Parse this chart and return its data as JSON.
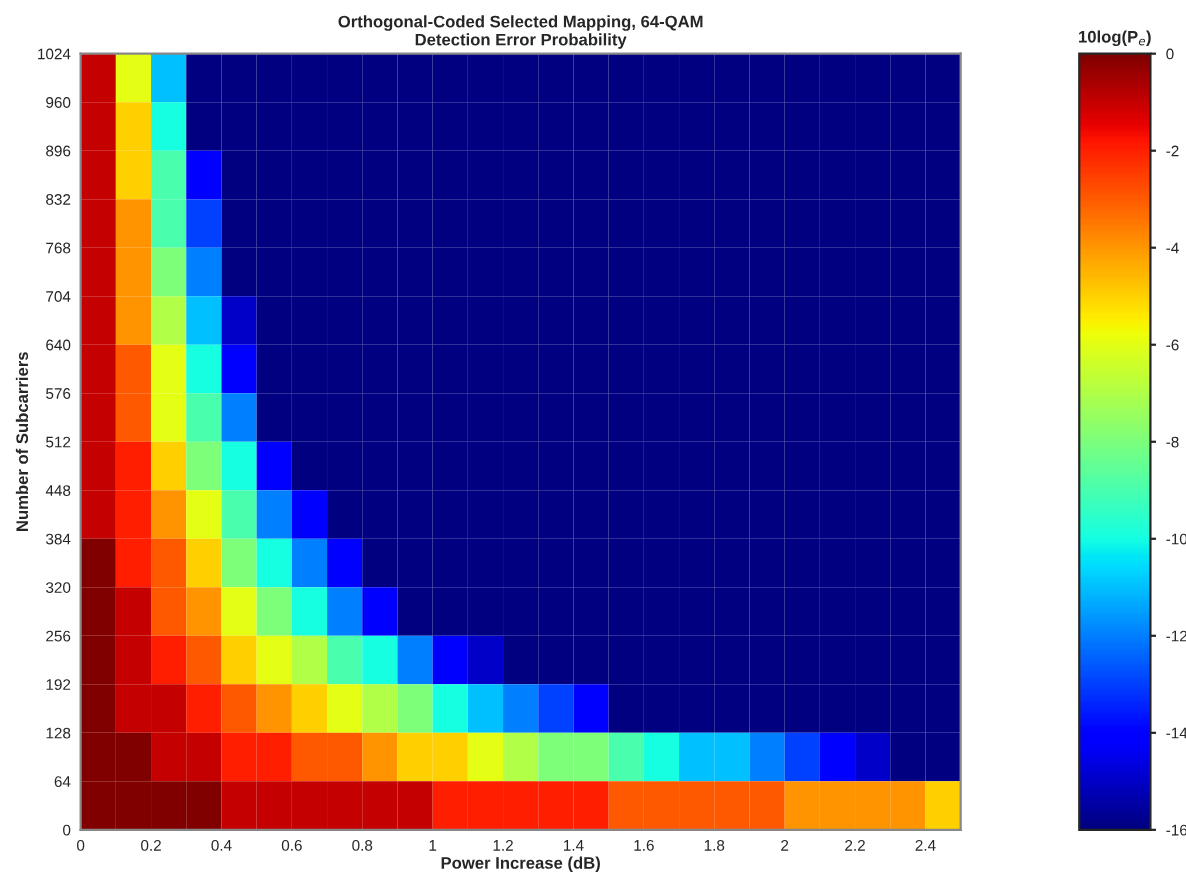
{
  "chart_data": {
    "type": "heatmap",
    "title": "Orthogonal-Coded Selected Mapping, 64-QAM",
    "subtitle": "Detection Error Probability",
    "xlabel": "Power Increase (dB)",
    "ylabel": "Number of Subcarriers",
    "clabel": "10log(P$_{e}$)",
    "x": [
      0.05,
      0.15,
      0.25,
      0.35,
      0.45,
      0.55,
      0.65,
      0.75,
      0.85,
      0.95,
      1.05,
      1.15,
      1.25,
      1.35,
      1.45,
      1.55,
      1.65,
      1.75,
      1.85,
      1.95,
      2.05,
      2.15,
      2.25,
      2.35,
      2.45
    ],
    "y": [
      992,
      928,
      864,
      800,
      736,
      672,
      608,
      544,
      480,
      416,
      352,
      288,
      224,
      160,
      96,
      32
    ],
    "xlim": [
      0,
      2.5
    ],
    "xticks": [
      0,
      0.2,
      0.4,
      0.6,
      0.8,
      1,
      1.2,
      1.4,
      1.6,
      1.8,
      2,
      2.2,
      2.4
    ],
    "ylim": [
      0,
      1024
    ],
    "yticks": [
      0,
      64,
      128,
      192,
      256,
      320,
      384,
      448,
      512,
      576,
      640,
      704,
      768,
      832,
      896,
      960,
      1024
    ],
    "clim": [
      -16,
      0
    ],
    "cticks": [
      0,
      -2,
      -4,
      -6,
      -8,
      -10,
      -12,
      -14,
      -16
    ],
    "cells": [
      [
        -1,
        -6,
        -11,
        -16,
        -16,
        -16,
        -16,
        -16,
        -16,
        -16,
        -16,
        -16,
        -16,
        -16,
        -16,
        -16,
        -16,
        -16,
        -16,
        -16,
        -16,
        -16,
        -16,
        -16,
        -16
      ],
      [
        -1,
        -5,
        -10,
        -16,
        -16,
        -16,
        -16,
        -16,
        -16,
        -16,
        -16,
        -16,
        -16,
        -16,
        -16,
        -16,
        -16,
        -16,
        -16,
        -16,
        -16,
        -16,
        -16,
        -16,
        -16
      ],
      [
        -1,
        -5,
        -9,
        -14,
        -16,
        -16,
        -16,
        -16,
        -16,
        -16,
        -16,
        -16,
        -16,
        -16,
        -16,
        -16,
        -16,
        -16,
        -16,
        -16,
        -16,
        -16,
        -16,
        -16,
        -16
      ],
      [
        -1,
        -4,
        -9,
        -13,
        -16,
        -16,
        -16,
        -16,
        -16,
        -16,
        -16,
        -16,
        -16,
        -16,
        -16,
        -16,
        -16,
        -16,
        -16,
        -16,
        -16,
        -16,
        -16,
        -16,
        -16
      ],
      [
        -1,
        -4,
        -8,
        -12,
        -16,
        -16,
        -16,
        -16,
        -16,
        -16,
        -16,
        -16,
        -16,
        -16,
        -16,
        -16,
        -16,
        -16,
        -16,
        -16,
        -16,
        -16,
        -16,
        -16,
        -16
      ],
      [
        -1,
        -4,
        -7,
        -11,
        -15,
        -16,
        -16,
        -16,
        -16,
        -16,
        -16,
        -16,
        -16,
        -16,
        -16,
        -16,
        -16,
        -16,
        -16,
        -16,
        -16,
        -16,
        -16,
        -16,
        -16
      ],
      [
        -1,
        -3,
        -6,
        -10,
        -14,
        -16,
        -16,
        -16,
        -16,
        -16,
        -16,
        -16,
        -16,
        -16,
        -16,
        -16,
        -16,
        -16,
        -16,
        -16,
        -16,
        -16,
        -16,
        -16,
        -16
      ],
      [
        -1,
        -3,
        -6,
        -9,
        -12,
        -16,
        -16,
        -16,
        -16,
        -16,
        -16,
        -16,
        -16,
        -16,
        -16,
        -16,
        -16,
        -16,
        -16,
        -16,
        -16,
        -16,
        -16,
        -16,
        -16
      ],
      [
        -1,
        -2,
        -5,
        -8,
        -10,
        -14,
        -16,
        -16,
        -16,
        -16,
        -16,
        -16,
        -16,
        -16,
        -16,
        -16,
        -16,
        -16,
        -16,
        -16,
        -16,
        -16,
        -16,
        -16,
        -16
      ],
      [
        -1,
        -2,
        -4,
        -6,
        -9,
        -12,
        -14,
        -16,
        -16,
        -16,
        -16,
        -16,
        -16,
        -16,
        -16,
        -16,
        -16,
        -16,
        -16,
        -16,
        -16,
        -16,
        -16,
        -16,
        -16
      ],
      [
        0,
        -2,
        -3,
        -5,
        -8,
        -10,
        -12,
        -14,
        -16,
        -16,
        -16,
        -16,
        -16,
        -16,
        -16,
        -16,
        -16,
        -16,
        -16,
        -16,
        -16,
        -16,
        -16,
        -16,
        -16
      ],
      [
        0,
        -1,
        -3,
        -4,
        -6,
        -8,
        -10,
        -12,
        -14,
        -16,
        -16,
        -16,
        -16,
        -16,
        -16,
        -16,
        -16,
        -16,
        -16,
        -16,
        -16,
        -16,
        -16,
        -16,
        -16
      ],
      [
        0,
        -1,
        -2,
        -3,
        -5,
        -6,
        -7,
        -9,
        -10,
        -12,
        -14,
        -15,
        -16,
        -16,
        -16,
        -16,
        -16,
        -16,
        -16,
        -16,
        -16,
        -16,
        -16,
        -16,
        -16
      ],
      [
        0,
        -1,
        -1,
        -2,
        -3,
        -4,
        -5,
        -6,
        -7,
        -8,
        -10,
        -11,
        -12,
        -13,
        -14,
        -16,
        -16,
        -16,
        -16,
        -16,
        -16,
        -16,
        -16,
        -16,
        -16
      ],
      [
        0,
        0,
        -1,
        -1,
        -2,
        -2,
        -3,
        -3,
        -4,
        -5,
        -5,
        -6,
        -7,
        -8,
        -8,
        -9,
        -10,
        -11,
        -11,
        -12,
        -13,
        -14,
        -15,
        -16,
        -16
      ],
      [
        0,
        0,
        0,
        0,
        -1,
        -1,
        -1,
        -1,
        -1,
        -1,
        -2,
        -2,
        -2,
        -2,
        -2,
        -3,
        -3,
        -3,
        -3,
        -3,
        -4,
        -4,
        -4,
        -4,
        -5
      ]
    ]
  }
}
